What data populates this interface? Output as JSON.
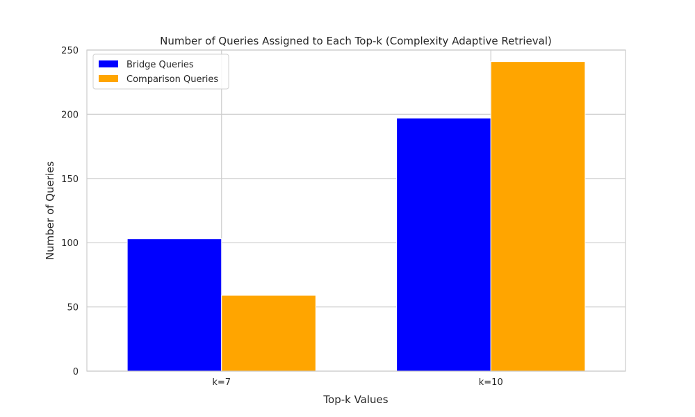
{
  "chart_data": {
    "type": "bar",
    "title": "Number of Queries Assigned to Each Top-k (Complexity Adaptive Retrieval)",
    "xlabel": "Top-k Values",
    "ylabel": "Number of Queries",
    "categories": [
      "k=7",
      "k=10"
    ],
    "series": [
      {
        "name": "Bridge Queries",
        "values": [
          103,
          197
        ],
        "color": "#0000ff"
      },
      {
        "name": "Comparison Queries",
        "values": [
          59,
          241
        ],
        "color": "#ffa500"
      }
    ],
    "ylim": [
      0,
      250
    ],
    "yticks": [
      0,
      50,
      100,
      150,
      200,
      250
    ],
    "grid": true,
    "legend_position": "top-left"
  }
}
